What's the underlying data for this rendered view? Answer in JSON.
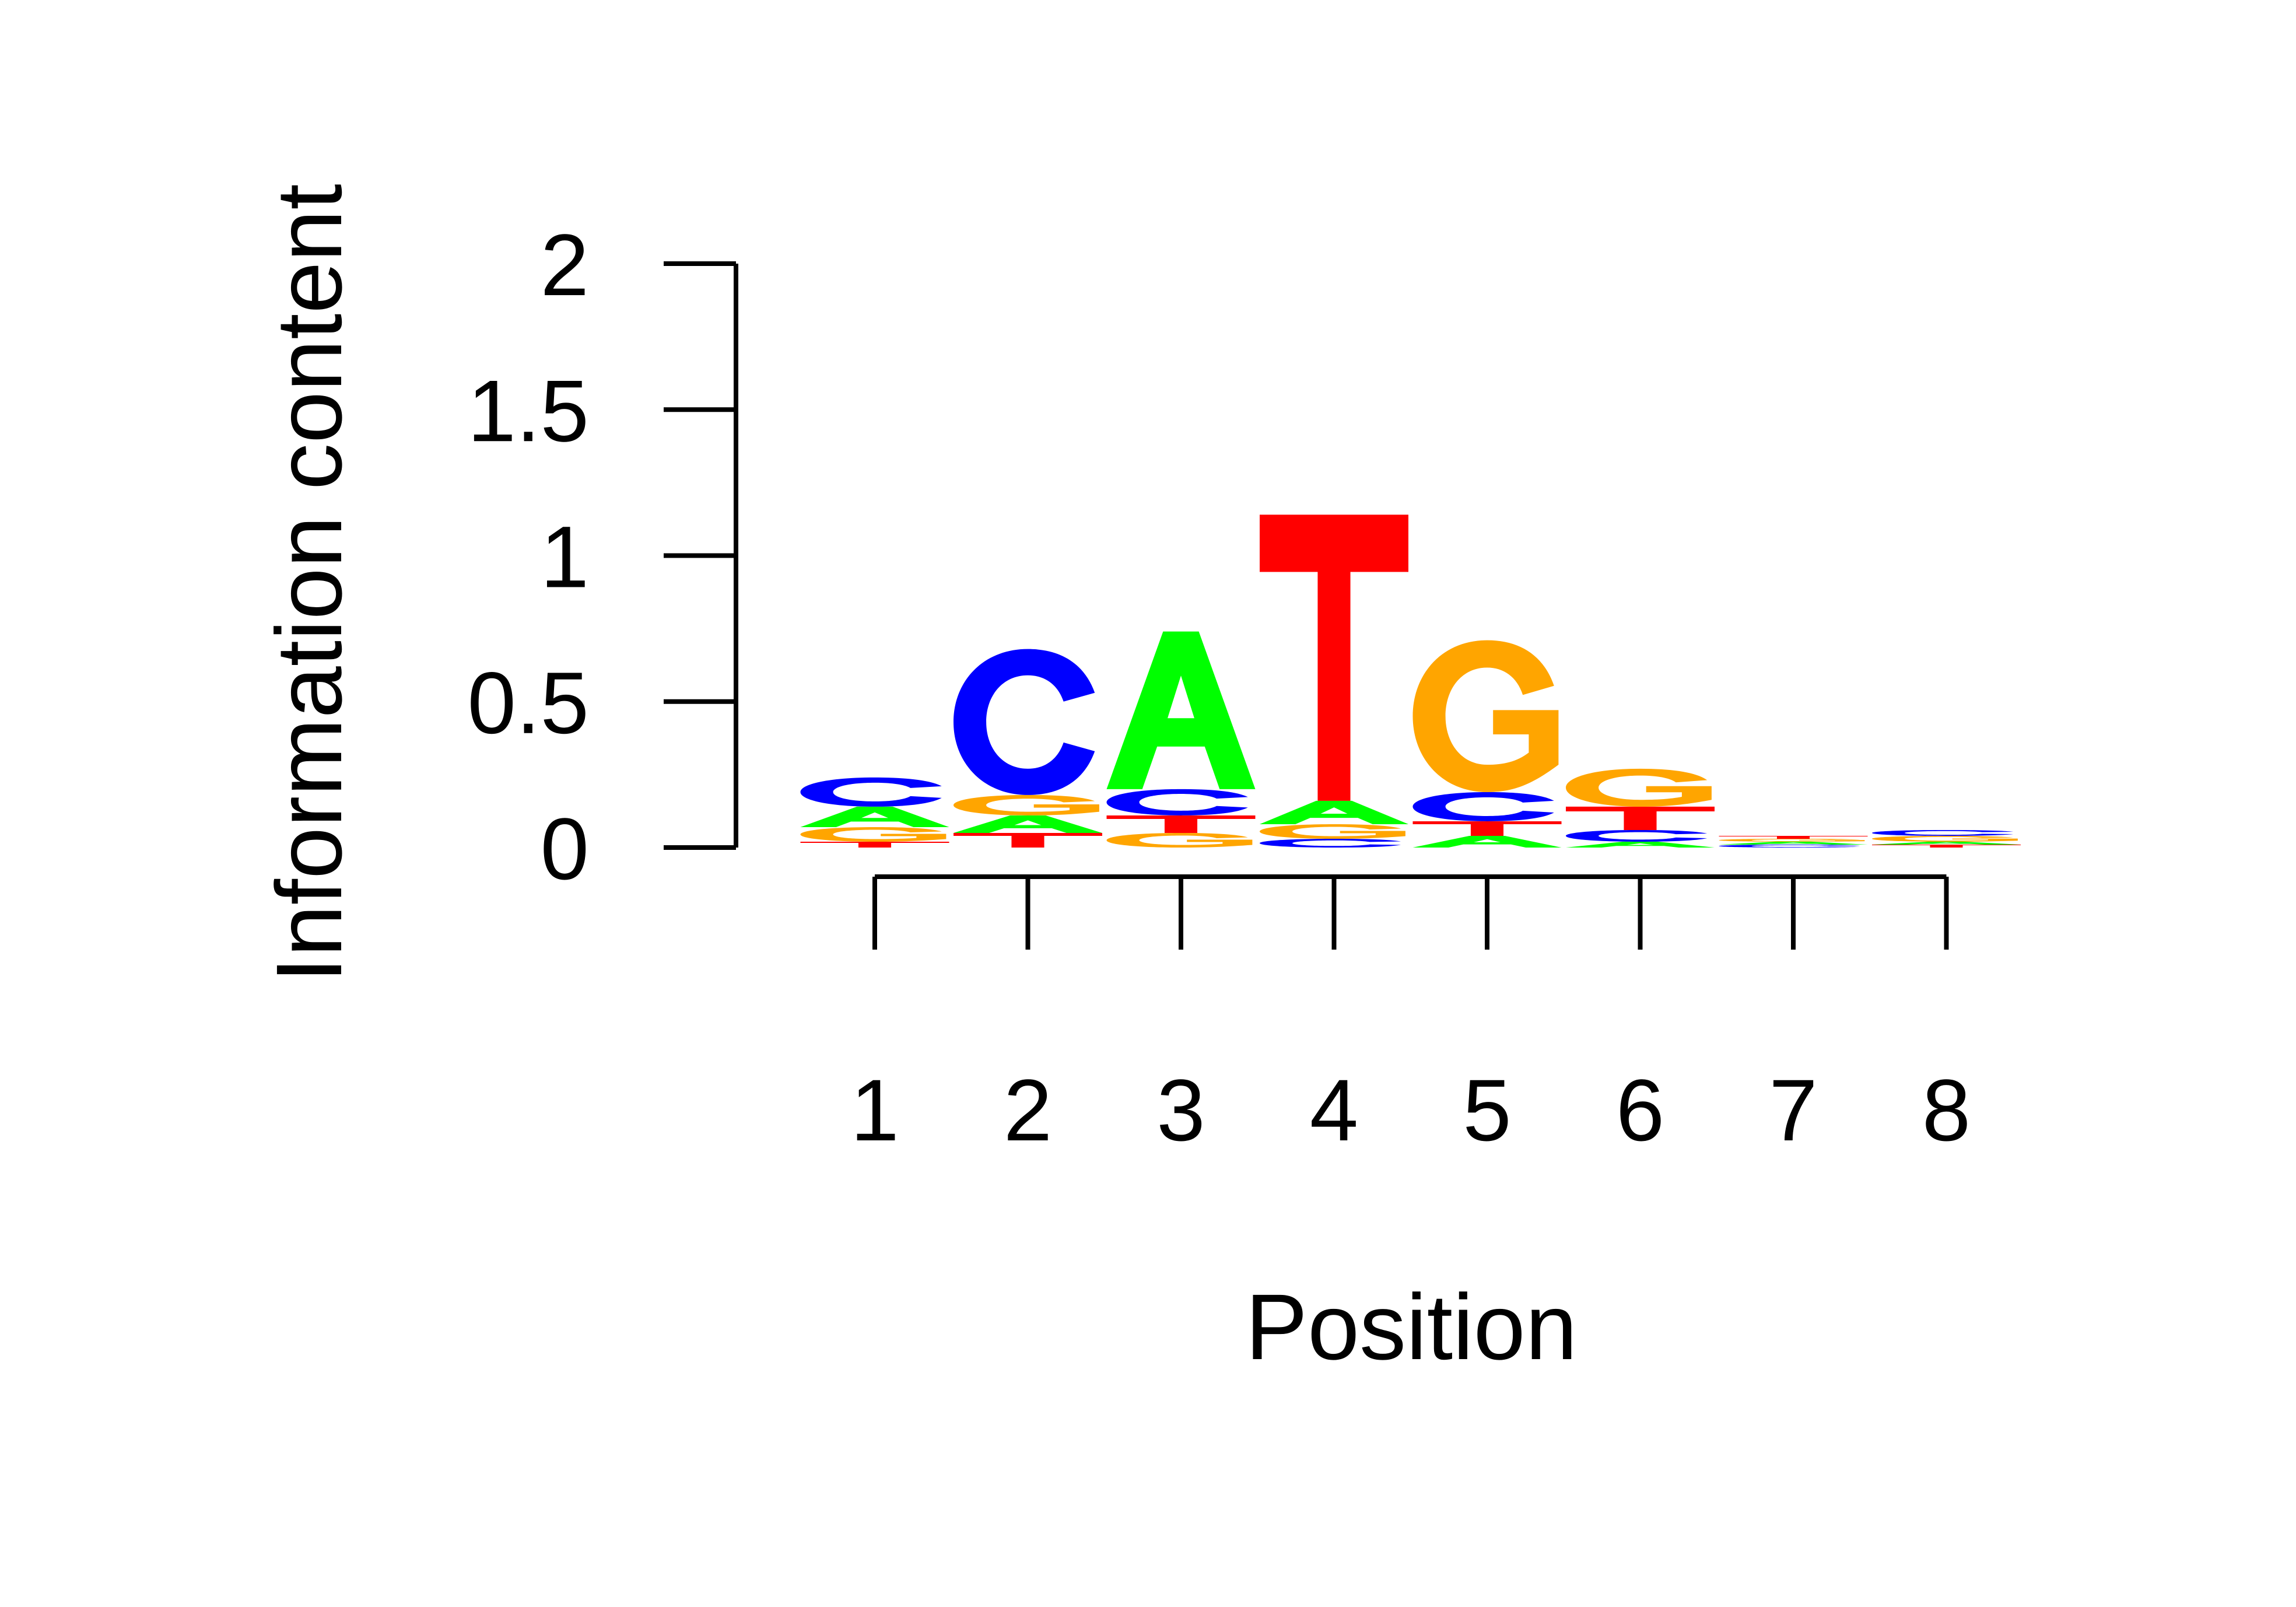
{
  "chart_data": {
    "type": "sequence-logo",
    "xlabel": "Position",
    "ylabel": "Information content",
    "ylim": [
      0,
      2
    ],
    "yticks": [
      "0",
      "0.5",
      "1",
      "1.5",
      "2"
    ],
    "positions": [
      "1",
      "2",
      "3",
      "4",
      "5",
      "6",
      "7",
      "8"
    ],
    "colors": {
      "A": "#00ff00",
      "C": "#0000ff",
      "G": "#ffa500",
      "T": "#ff0000"
    },
    "stacks": [
      [
        {
          "letter": "T",
          "bits": 0.02
        },
        {
          "letter": "G",
          "bits": 0.05
        },
        {
          "letter": "A",
          "bits": 0.07
        },
        {
          "letter": "C",
          "bits": 0.1
        }
      ],
      [
        {
          "letter": "T",
          "bits": 0.05
        },
        {
          "letter": "A",
          "bits": 0.06
        },
        {
          "letter": "G",
          "bits": 0.07
        },
        {
          "letter": "C",
          "bits": 0.5
        }
      ],
      [
        {
          "letter": "G",
          "bits": 0.05
        },
        {
          "letter": "T",
          "bits": 0.06
        },
        {
          "letter": "C",
          "bits": 0.09
        },
        {
          "letter": "A",
          "bits": 0.54
        }
      ],
      [
        {
          "letter": "C",
          "bits": 0.03
        },
        {
          "letter": "G",
          "bits": 0.05
        },
        {
          "letter": "A",
          "bits": 0.08
        },
        {
          "letter": "T",
          "bits": 0.98
        }
      ],
      [
        {
          "letter": "A",
          "bits": 0.04
        },
        {
          "letter": "T",
          "bits": 0.05
        },
        {
          "letter": "C",
          "bits": 0.1
        },
        {
          "letter": "G",
          "bits": 0.52
        }
      ],
      [
        {
          "letter": "A",
          "bits": 0.02
        },
        {
          "letter": "C",
          "bits": 0.04
        },
        {
          "letter": "T",
          "bits": 0.08
        },
        {
          "letter": "G",
          "bits": 0.13
        }
      ],
      [
        {
          "letter": "C",
          "bits": 0.01
        },
        {
          "letter": "A",
          "bits": 0.01
        },
        {
          "letter": "G",
          "bits": 0.01
        },
        {
          "letter": "T",
          "bits": 0.01
        }
      ],
      [
        {
          "letter": "T",
          "bits": 0.01
        },
        {
          "letter": "A",
          "bits": 0.01
        },
        {
          "letter": "G",
          "bits": 0.02
        },
        {
          "letter": "C",
          "bits": 0.02
        }
      ]
    ]
  }
}
